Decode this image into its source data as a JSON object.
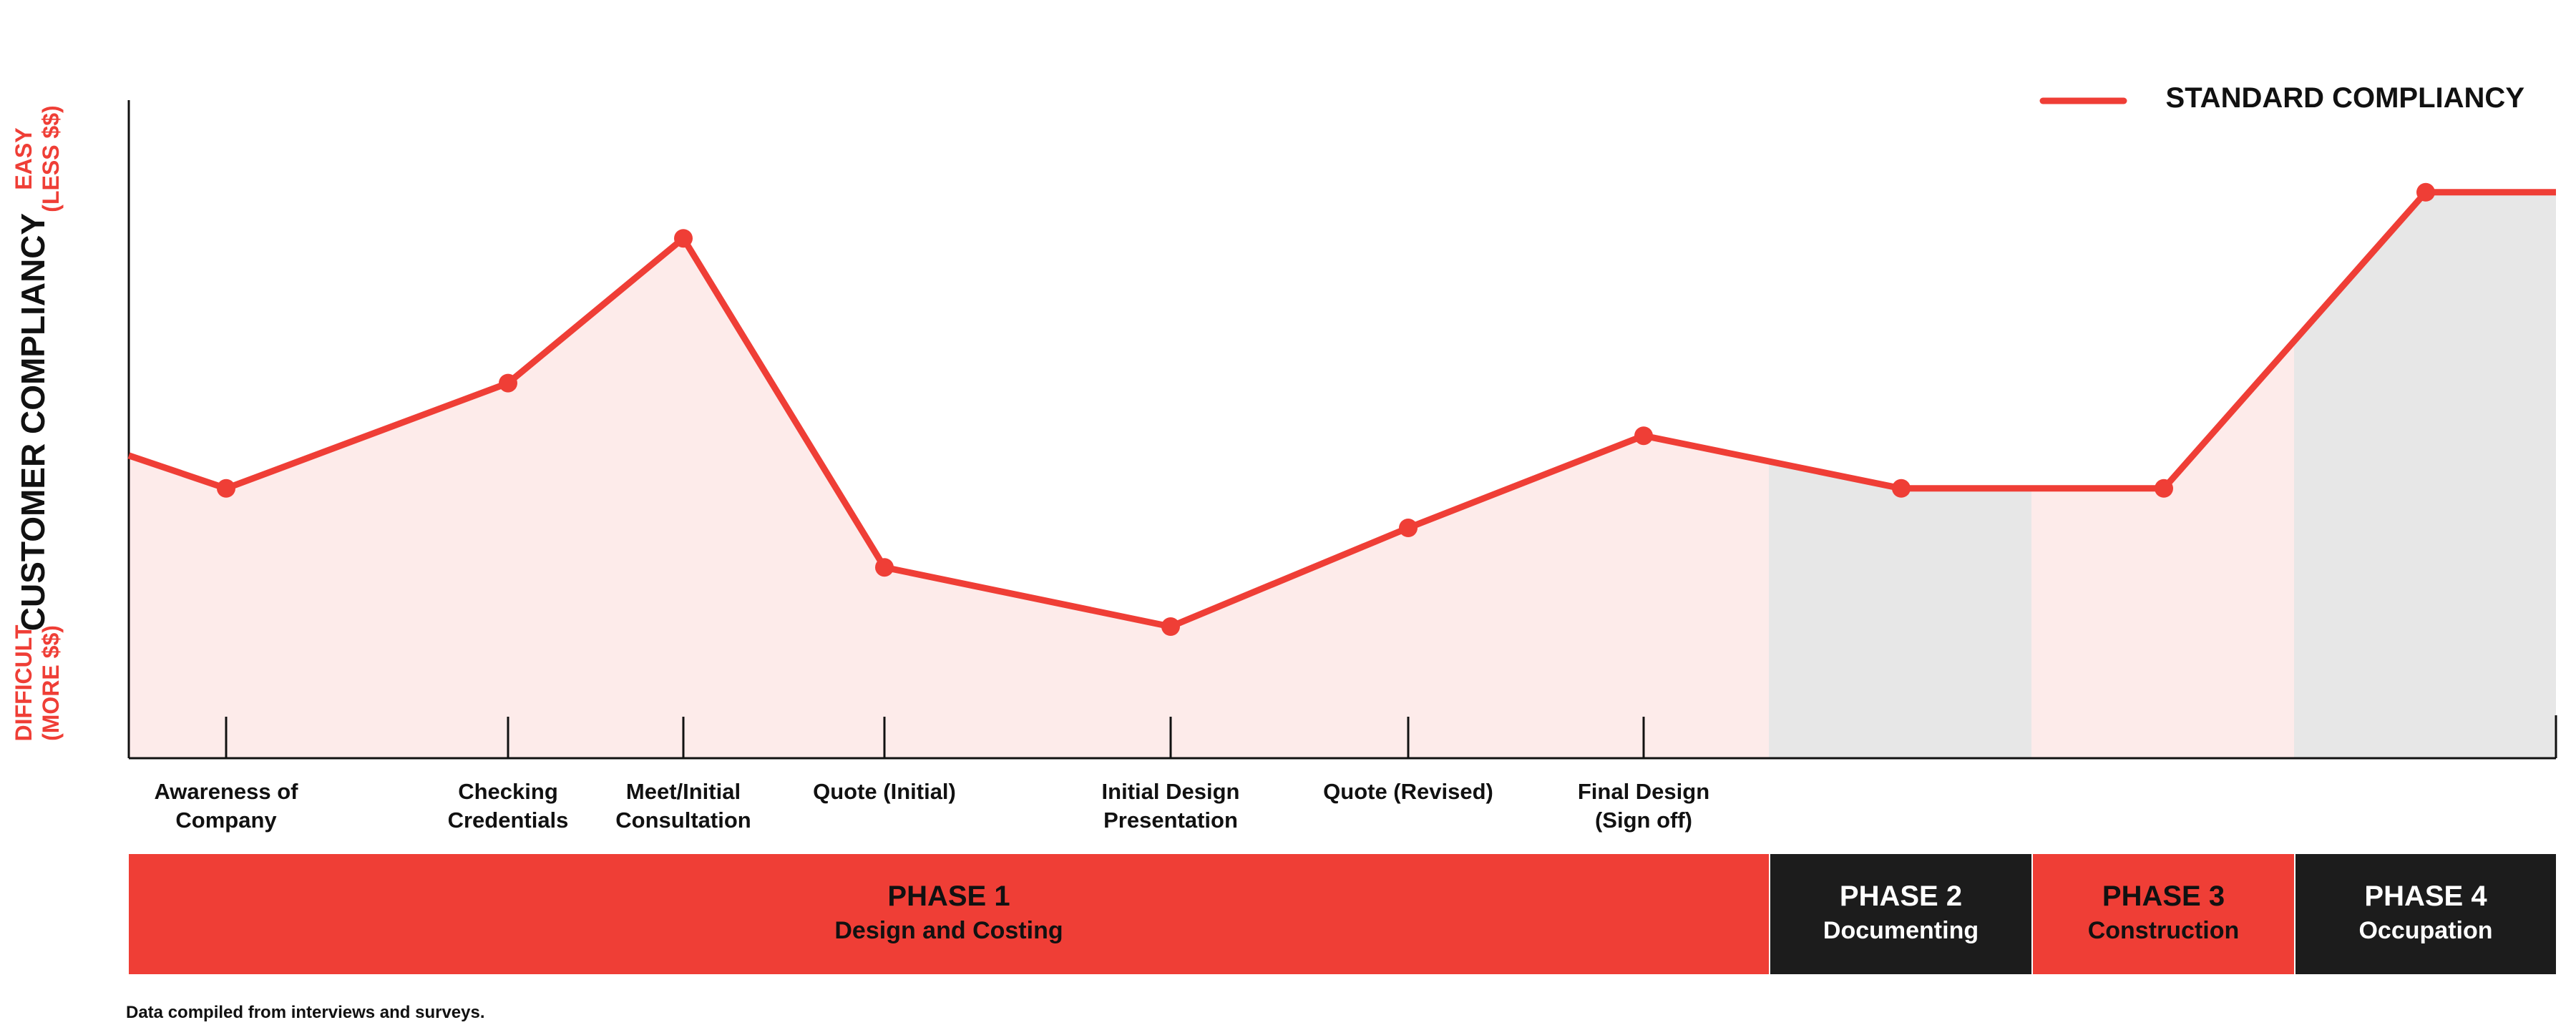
{
  "chart_data": {
    "type": "line",
    "title": "",
    "legend": {
      "label": "STANDARD COMPLIANCY",
      "position": "top-right"
    },
    "ylabel": "CUSTOMER COMPLIANCY",
    "y_top_label": [
      "EASY",
      "(LESS $$)"
    ],
    "y_bottom_label": [
      "DIFFICULT",
      "(MORE $$)"
    ],
    "x_tick_labels": [
      [
        "Awareness of",
        "Company"
      ],
      [
        "Checking",
        "Credentials"
      ],
      [
        "Meet/Initial",
        "Consultation"
      ],
      [
        "Quote (Initial)"
      ],
      [
        "Initial Design",
        "Presentation"
      ],
      [
        "Quote (Revised)"
      ],
      [
        "Final Design",
        "(Sign off)"
      ]
    ],
    "series": [
      {
        "name": "STANDARD COMPLIANCY",
        "points": [
          {
            "label": "Awareness of Company",
            "value": 4.1
          },
          {
            "label": "Checking Credentials",
            "value": 5.7
          },
          {
            "label": "Meet/Initial Consultation",
            "value": 7.9
          },
          {
            "label": "Quote (Initial)",
            "value": 2.9
          },
          {
            "label": "Initial Design Presentation",
            "value": 2.0
          },
          {
            "label": "Quote (Revised)",
            "value": 3.5
          },
          {
            "label": "Final Design (Sign off)",
            "value": 4.9
          },
          {
            "label": "Phase 2",
            "value": 4.1
          },
          {
            "label": "Phase 3",
            "value": 4.1
          },
          {
            "label": "Phase 4",
            "value": 8.6
          }
        ]
      }
    ],
    "ylim": [
      0,
      10
    ],
    "phases": [
      {
        "title": "PHASE 1",
        "subtitle": "Design and Costing",
        "color": "#EF3E36",
        "shade": "#FDEBEA"
      },
      {
        "title": "PHASE 2",
        "subtitle": "Documenting",
        "color": "#1C1C1C",
        "shade": "#E7E7E7"
      },
      {
        "title": "PHASE 3",
        "subtitle": "Construction",
        "color": "#EF3E36",
        "shade": "#FDEBEA"
      },
      {
        "title": "PHASE 4",
        "subtitle": "Occupation",
        "color": "#1C1C1C",
        "shade": "#E7E7E7"
      }
    ],
    "colors": {
      "line": "#EF3E36",
      "accent_text": "#EF3E36",
      "axis": "#111111"
    }
  },
  "footnote": "Data compiled from interviews and surveys."
}
